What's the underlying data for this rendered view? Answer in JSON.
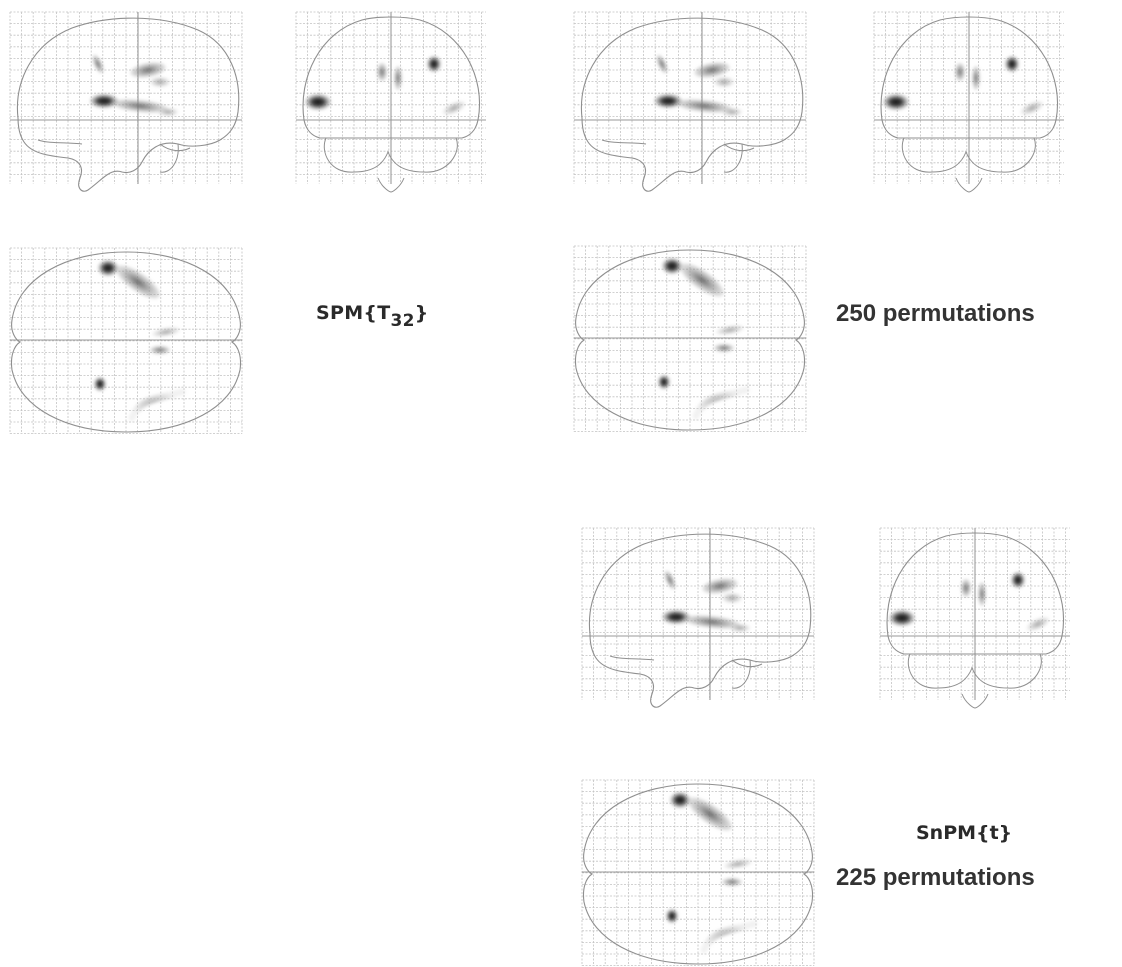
{
  "labels": {
    "spm_prefix": "SPM{T",
    "spm_subscript": "32",
    "spm_suffix": "}",
    "perm_250": "250 permutations",
    "snpm": "SnPM{t}",
    "perm_225": "225 permutations"
  },
  "colors": {
    "grid": "#c2c2c2",
    "outline": "#8f8f8f",
    "blob_dark": "#111111",
    "blob_mid": "#666666",
    "blob_light": "#a8a8a8"
  },
  "panel_groups": [
    {
      "name": "spm-t32-group",
      "views": [
        "sagittal",
        "coronal",
        "transverse"
      ]
    },
    {
      "name": "perm-250-group",
      "views": [
        "sagittal",
        "coronal",
        "transverse"
      ]
    },
    {
      "name": "snpm-225-group",
      "views": [
        "sagittal",
        "coronal",
        "transverse"
      ]
    }
  ]
}
